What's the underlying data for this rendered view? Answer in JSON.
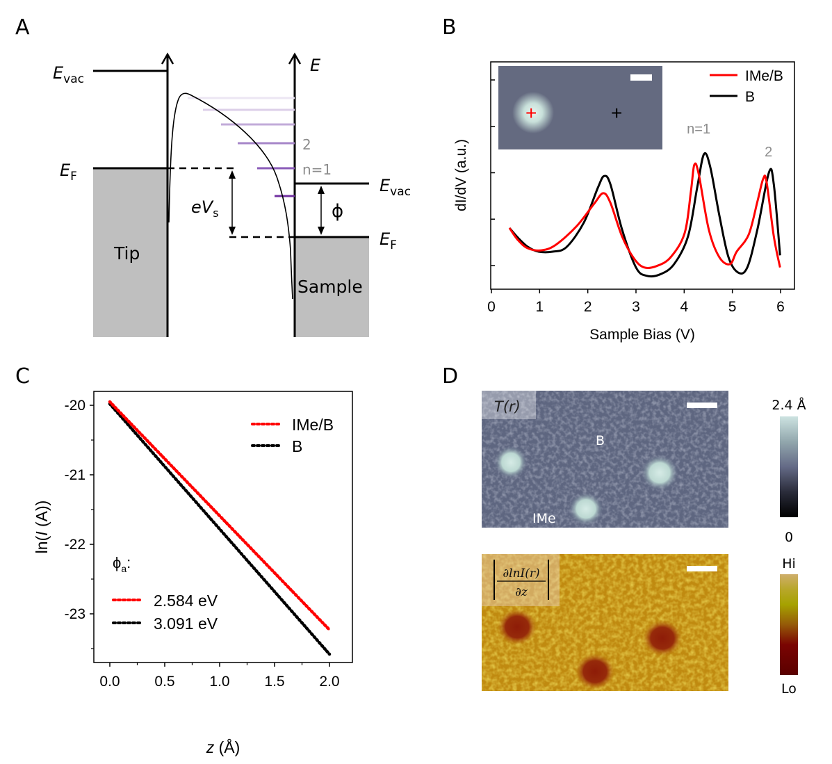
{
  "panels": {
    "a": {
      "label": "A",
      "evac_tip": "E",
      "evac_tip_sub": "vac",
      "ef_tip": "E",
      "ef_tip_sub": "F",
      "energy_axis": "E",
      "evac_sample": "E",
      "evac_sample_sub": "vac",
      "ef_sample": "E",
      "ef_sample_sub": "F",
      "bias": "eV",
      "bias_sub": "s",
      "work_function": "ϕ",
      "state_n1": "n=1",
      "state_n2": "2",
      "tip": "Tip",
      "sample": "Sample",
      "colors": {
        "gray_fill": "#bfbfbf",
        "state_color": "#7030a0",
        "state_label": "#8c8c8c"
      }
    },
    "b": {
      "label": "B",
      "inset_scalebar": true,
      "inset_marker_red": "+",
      "inset_marker_black": "+"
    },
    "c": {
      "label": "C",
      "phi_label": "ϕ",
      "phi_sub": "a",
      "phi_colon": ":"
    },
    "d": {
      "label": "D",
      "top_map_label": "T(r)",
      "top_label_b": "B",
      "top_label_ime": "IMe",
      "top_cbar_max": "2.4 Å",
      "top_cbar_min": "0",
      "bottom_map_label_num": "∂lnI(r)",
      "bottom_map_label_den": "∂z",
      "bottom_cbar_max": "Hi",
      "bottom_cbar_min": "Lo",
      "colors": {
        "topo_bg": "#646a80",
        "topo_spot": "#c8dedb",
        "didz_bg": "#c08a10",
        "didz_spot": "#8a1a08"
      }
    }
  },
  "chart_data": [
    {
      "id": "panel-b",
      "type": "line",
      "title": "",
      "xlabel": "Sample Bias (V)",
      "ylabel": "dI/dV (a.u.)",
      "xlim": [
        0,
        6.5
      ],
      "ylim": [
        -0.7,
        4.3
      ],
      "xticks": [
        0,
        1,
        2,
        3,
        4,
        5,
        6
      ],
      "yticks": [
        0,
        1,
        2,
        3,
        4
      ],
      "ytick_labels_shown": false,
      "legend": "top-right",
      "annotations": [
        {
          "text": "n=1",
          "x": 4.3,
          "y": 2.85
        },
        {
          "text": "2",
          "x": 5.75,
          "y": 2.35
        }
      ],
      "series": [
        {
          "name": "IMe/B",
          "color": "#ff0000",
          "x": [
            0.375,
            0.55,
            0.76,
            1.05,
            1.34,
            1.77,
            2.13,
            2.32,
            2.47,
            2.71,
            2.96,
            3.17,
            3.43,
            3.72,
            4.01,
            4.14,
            4.21,
            4.3,
            4.51,
            4.73,
            4.95,
            5.09,
            5.34,
            5.52,
            5.64,
            5.71,
            5.86,
            5.99
          ],
          "y": [
            0.81,
            0.55,
            0.37,
            0.33,
            0.45,
            0.85,
            1.33,
            1.56,
            1.35,
            0.63,
            0.15,
            -0.04,
            -0.01,
            0.18,
            0.7,
            1.6,
            2.17,
            1.98,
            0.78,
            0.18,
            0.03,
            0.3,
            0.67,
            1.38,
            1.87,
            1.8,
            0.63,
            -0.04
          ]
        },
        {
          "name": "B",
          "color": "#000000",
          "x": [
            0.375,
            0.55,
            0.76,
            0.98,
            1.27,
            1.56,
            1.92,
            2.21,
            2.34,
            2.47,
            2.71,
            3.0,
            3.22,
            3.5,
            3.79,
            4.08,
            4.27,
            4.41,
            4.54,
            4.73,
            4.92,
            5.12,
            5.31,
            5.52,
            5.76,
            5.86,
            5.99
          ],
          "y": [
            0.81,
            0.6,
            0.4,
            0.3,
            0.3,
            0.4,
            0.93,
            1.68,
            1.93,
            1.75,
            0.78,
            -0.04,
            -0.22,
            -0.19,
            0.03,
            0.63,
            1.68,
            2.4,
            2.13,
            1.08,
            0.18,
            -0.15,
            -0.04,
            0.78,
            2.01,
            1.75,
            0.22
          ]
        }
      ]
    },
    {
      "id": "panel-c",
      "type": "line",
      "title": "",
      "xlabel": "z (Å)",
      "ylabel": "ln(I (A))",
      "xlim": [
        -0.15,
        2.05
      ],
      "ylim": [
        -23.7,
        -19.8
      ],
      "xticks": [
        0.0,
        0.5,
        1.0,
        1.5,
        2.0
      ],
      "xtick_labels": [
        "0.0",
        "0.5",
        "1.0",
        "1.5",
        "2.0"
      ],
      "yticks": [
        -20,
        -21,
        -22,
        -23
      ],
      "yticks_minor": [
        -20.5,
        -21.5,
        -22.5,
        -23.5
      ],
      "ytick_labels": [
        "-20",
        "-21",
        "-22",
        "-23"
      ],
      "legend": "top-right",
      "series": [
        {
          "name": "IMe/B",
          "color": "#ff0000",
          "style": "dotted+fit",
          "x": [
            0.0,
            2.0
          ],
          "y": [
            -19.95,
            -23.23
          ],
          "fit_label": "2.584 eV"
        },
        {
          "name": "B",
          "color": "#000000",
          "style": "dotted+fit",
          "x": [
            0.0,
            2.0
          ],
          "y": [
            -19.98,
            -23.58
          ],
          "fit_label": "3.091 eV"
        }
      ]
    }
  ]
}
